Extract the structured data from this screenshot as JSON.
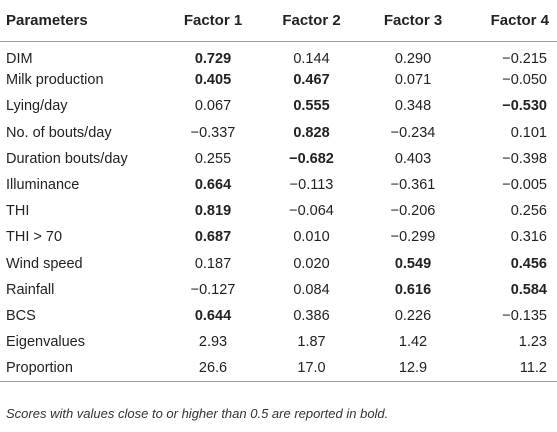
{
  "table": {
    "headers": [
      "Parameters",
      "Factor 1",
      "Factor 2",
      "Factor 3",
      "Factor 4"
    ],
    "rows": [
      {
        "param": "DIM",
        "values": [
          {
            "v": "0.729",
            "bold": true
          },
          {
            "v": "0.144",
            "bold": false
          },
          {
            "v": "0.290",
            "bold": false
          },
          {
            "v": "−0.215",
            "bold": false
          }
        ]
      },
      {
        "param": "Milk production",
        "values": [
          {
            "v": "0.405",
            "bold": true
          },
          {
            "v": "0.467",
            "bold": true
          },
          {
            "v": "0.071",
            "bold": false
          },
          {
            "v": "−0.050",
            "bold": false
          }
        ]
      },
      {
        "param": "Lying/day",
        "values": [
          {
            "v": "0.067",
            "bold": false
          },
          {
            "v": "0.555",
            "bold": true
          },
          {
            "v": "0.348",
            "bold": false
          },
          {
            "v": "−0.530",
            "bold": true
          }
        ]
      },
      {
        "param": "No. of bouts/day",
        "values": [
          {
            "v": "−0.337",
            "bold": false
          },
          {
            "v": "0.828",
            "bold": true
          },
          {
            "v": "−0.234",
            "bold": false
          },
          {
            "v": "0.101",
            "bold": false
          }
        ]
      },
      {
        "param": "Duration bouts/day",
        "values": [
          {
            "v": "0.255",
            "bold": false
          },
          {
            "v": "−0.682",
            "bold": true
          },
          {
            "v": "0.403",
            "bold": false
          },
          {
            "v": "−0.398",
            "bold": false
          }
        ]
      },
      {
        "param": "Illuminance",
        "values": [
          {
            "v": "0.664",
            "bold": true
          },
          {
            "v": "−0.113",
            "bold": false
          },
          {
            "v": "−0.361",
            "bold": false
          },
          {
            "v": "−0.005",
            "bold": false
          }
        ]
      },
      {
        "param": "THI",
        "values": [
          {
            "v": "0.819",
            "bold": true
          },
          {
            "v": "−0.064",
            "bold": false
          },
          {
            "v": "−0.206",
            "bold": false
          },
          {
            "v": "0.256",
            "bold": false
          }
        ]
      },
      {
        "param": "THI > 70",
        "values": [
          {
            "v": "0.687",
            "bold": true
          },
          {
            "v": "0.010",
            "bold": false
          },
          {
            "v": "−0.299",
            "bold": false
          },
          {
            "v": "0.316",
            "bold": false
          }
        ]
      },
      {
        "param": "Wind speed",
        "values": [
          {
            "v": "0.187",
            "bold": false
          },
          {
            "v": "0.020",
            "bold": false
          },
          {
            "v": "0.549",
            "bold": true
          },
          {
            "v": "0.456",
            "bold": true
          }
        ]
      },
      {
        "param": "Rainfall",
        "values": [
          {
            "v": "−0.127",
            "bold": false
          },
          {
            "v": "0.084",
            "bold": false
          },
          {
            "v": "0.616",
            "bold": true
          },
          {
            "v": "0.584",
            "bold": true
          }
        ]
      },
      {
        "param": "BCS",
        "values": [
          {
            "v": "0.644",
            "bold": true
          },
          {
            "v": "0.386",
            "bold": false
          },
          {
            "v": "0.226",
            "bold": false
          },
          {
            "v": "−0.135",
            "bold": false
          }
        ]
      },
      {
        "param": "Eigenvalues",
        "values": [
          {
            "v": "2.93",
            "bold": false
          },
          {
            "v": "1.87",
            "bold": false
          },
          {
            "v": "1.42",
            "bold": false
          },
          {
            "v": "1.23",
            "bold": false
          }
        ]
      },
      {
        "param": "Proportion",
        "values": [
          {
            "v": "26.6",
            "bold": false
          },
          {
            "v": "17.0",
            "bold": false
          },
          {
            "v": "12.9",
            "bold": false
          },
          {
            "v": "11.2",
            "bold": false
          }
        ]
      }
    ]
  },
  "note": "Scores with values close to or higher than 0.5 are reported in bold."
}
